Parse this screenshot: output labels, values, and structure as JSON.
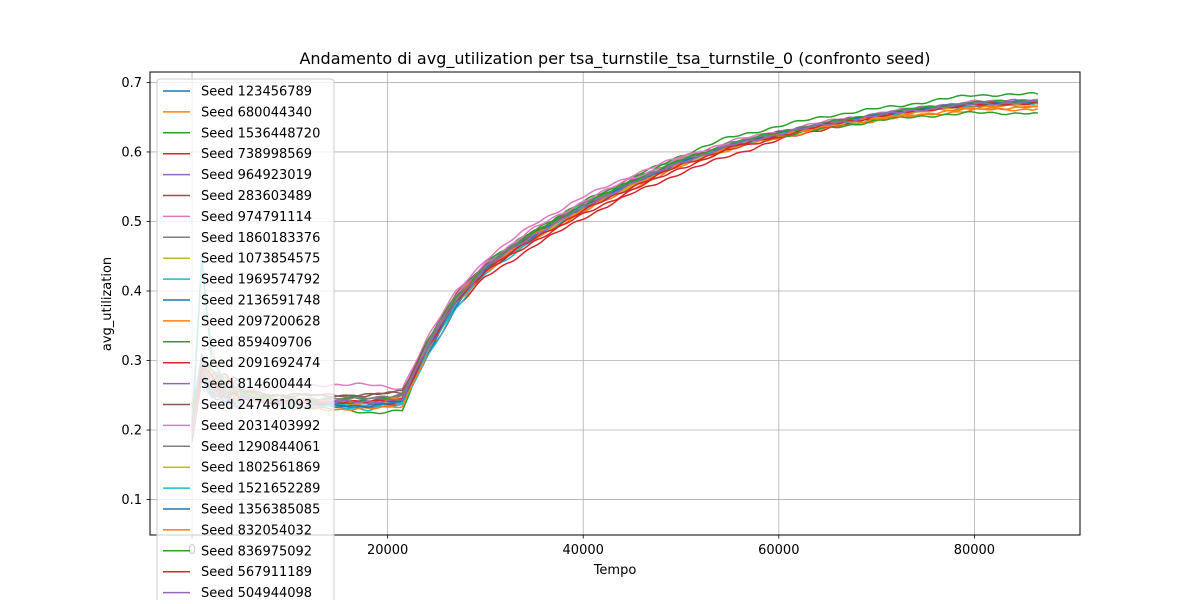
{
  "chart_data": {
    "type": "line",
    "title": "Andamento di avg_utilization per tsa_turnstile_tsa_turnstile_0 (confronto seed)",
    "xlabel": "Tempo",
    "ylabel": "avg_utilization",
    "xlim": [
      -4300,
      90800
    ],
    "ylim": [
      0.049,
      0.715
    ],
    "xticks": [
      0,
      20000,
      40000,
      60000,
      80000
    ],
    "xtick_labels": [
      "0",
      "20000",
      "40000",
      "60000",
      "80000"
    ],
    "yticks": [
      0.1,
      0.2,
      0.3,
      0.4,
      0.5,
      0.6,
      0.7
    ],
    "ytick_labels": [
      "0.1",
      "0.2",
      "0.3",
      "0.4",
      "0.5",
      "0.6",
      "0.7"
    ],
    "grid": true,
    "legend_position": "upper-left",
    "x": [
      0,
      1000,
      2000,
      4000,
      6000,
      8000,
      10000,
      14000,
      18000,
      21500,
      24000,
      27000,
      30000,
      35000,
      40000,
      45000,
      50000,
      55000,
      60000,
      65000,
      70000,
      75000,
      80000,
      86500
    ],
    "series": [
      {
        "name": "Seed 123456789",
        "color": "#1f77b4",
        "values": [
          0.19,
          0.28,
          0.25,
          0.25,
          0.25,
          0.24,
          0.24,
          0.24,
          0.24,
          0.245,
          0.32,
          0.39,
          0.435,
          0.48,
          0.52,
          0.555,
          0.585,
          0.61,
          0.625,
          0.64,
          0.65,
          0.662,
          0.67,
          0.67
        ]
      },
      {
        "name": "Seed 680044340",
        "color": "#ff7f0e",
        "values": [
          0.2,
          0.44,
          0.3,
          0.26,
          0.25,
          0.245,
          0.24,
          0.235,
          0.235,
          0.24,
          0.315,
          0.385,
          0.43,
          0.475,
          0.517,
          0.552,
          0.582,
          0.606,
          0.622,
          0.636,
          0.647,
          0.655,
          0.662,
          0.665
        ]
      },
      {
        "name": "Seed 1536448720",
        "color": "#2ca02c",
        "values": [
          0.22,
          0.3,
          0.27,
          0.255,
          0.25,
          0.24,
          0.235,
          0.23,
          0.225,
          0.228,
          0.31,
          0.385,
          0.435,
          0.485,
          0.527,
          0.563,
          0.595,
          0.621,
          0.637,
          0.652,
          0.662,
          0.672,
          0.682,
          0.683
        ]
      },
      {
        "name": "Seed 738998569",
        "color": "#d62728",
        "values": [
          0.21,
          0.3,
          0.27,
          0.25,
          0.245,
          0.24,
          0.235,
          0.235,
          0.235,
          0.236,
          0.305,
          0.375,
          0.42,
          0.465,
          0.505,
          0.54,
          0.57,
          0.595,
          0.617,
          0.635,
          0.65,
          0.662,
          0.668,
          0.672
        ]
      },
      {
        "name": "Seed 964923019",
        "color": "#9467bd",
        "values": [
          0.22,
          0.29,
          0.26,
          0.25,
          0.25,
          0.245,
          0.24,
          0.24,
          0.24,
          0.25,
          0.32,
          0.39,
          0.437,
          0.482,
          0.52,
          0.556,
          0.586,
          0.611,
          0.628,
          0.642,
          0.654,
          0.664,
          0.671,
          0.675
        ]
      },
      {
        "name": "Seed 283603489",
        "color": "#8c564b",
        "values": [
          0.21,
          0.29,
          0.27,
          0.26,
          0.255,
          0.25,
          0.25,
          0.25,
          0.25,
          0.255,
          0.325,
          0.395,
          0.44,
          0.485,
          0.523,
          0.557,
          0.588,
          0.612,
          0.628,
          0.642,
          0.653,
          0.663,
          0.669,
          0.671
        ]
      },
      {
        "name": "Seed 974791114",
        "color": "#e377c2",
        "values": [
          0.21,
          0.3,
          0.27,
          0.26,
          0.26,
          0.26,
          0.265,
          0.265,
          0.265,
          0.26,
          0.33,
          0.4,
          0.445,
          0.497,
          0.535,
          0.567,
          0.593,
          0.615,
          0.63,
          0.644,
          0.655,
          0.665,
          0.672,
          0.676
        ]
      },
      {
        "name": "Seed 1860183376",
        "color": "#7f7f7f",
        "values": [
          0.2,
          0.29,
          0.27,
          0.26,
          0.255,
          0.25,
          0.245,
          0.245,
          0.245,
          0.25,
          0.325,
          0.395,
          0.44,
          0.485,
          0.524,
          0.558,
          0.588,
          0.612,
          0.628,
          0.642,
          0.654,
          0.663,
          0.67,
          0.673
        ]
      },
      {
        "name": "Seed 1073854575",
        "color": "#bcbd22",
        "values": [
          0.2,
          0.29,
          0.265,
          0.255,
          0.25,
          0.245,
          0.24,
          0.24,
          0.24,
          0.245,
          0.318,
          0.388,
          0.434,
          0.48,
          0.519,
          0.553,
          0.584,
          0.608,
          0.625,
          0.639,
          0.651,
          0.661,
          0.667,
          0.669
        ]
      },
      {
        "name": "Seed 1969574792",
        "color": "#17becf",
        "values": [
          0.19,
          0.47,
          0.3,
          0.26,
          0.25,
          0.245,
          0.24,
          0.235,
          0.23,
          0.235,
          0.305,
          0.375,
          0.425,
          0.475,
          0.517,
          0.552,
          0.583,
          0.607,
          0.624,
          0.638,
          0.65,
          0.66,
          0.667,
          0.67
        ]
      },
      {
        "name": "Seed 2136591748",
        "color": "#1f77b4",
        "values": [
          0.2,
          0.29,
          0.26,
          0.25,
          0.245,
          0.24,
          0.24,
          0.235,
          0.235,
          0.24,
          0.31,
          0.378,
          0.428,
          0.478,
          0.52,
          0.555,
          0.585,
          0.609,
          0.626,
          0.64,
          0.652,
          0.662,
          0.669,
          0.672
        ]
      },
      {
        "name": "Seed 2097200628",
        "color": "#ff7f0e",
        "values": [
          0.21,
          0.3,
          0.27,
          0.25,
          0.245,
          0.24,
          0.235,
          0.23,
          0.23,
          0.235,
          0.31,
          0.38,
          0.428,
          0.475,
          0.514,
          0.548,
          0.579,
          0.604,
          0.621,
          0.635,
          0.646,
          0.654,
          0.66,
          0.662
        ]
      },
      {
        "name": "Seed 859409706",
        "color": "#2ca02c",
        "values": [
          0.22,
          0.3,
          0.27,
          0.26,
          0.255,
          0.25,
          0.245,
          0.245,
          0.245,
          0.25,
          0.325,
          0.395,
          0.44,
          0.488,
          0.528,
          0.562,
          0.59,
          0.61,
          0.622,
          0.634,
          0.645,
          0.652,
          0.656,
          0.656
        ]
      },
      {
        "name": "Seed 2091692474",
        "color": "#d62728",
        "values": [
          0.2,
          0.29,
          0.26,
          0.25,
          0.245,
          0.24,
          0.24,
          0.24,
          0.24,
          0.245,
          0.315,
          0.385,
          0.428,
          0.472,
          0.51,
          0.545,
          0.577,
          0.603,
          0.622,
          0.638,
          0.651,
          0.661,
          0.668,
          0.671
        ]
      },
      {
        "name": "Seed 814600444",
        "color": "#9467bd",
        "values": [
          0.2,
          0.29,
          0.26,
          0.25,
          0.245,
          0.24,
          0.24,
          0.24,
          0.24,
          0.245,
          0.318,
          0.388,
          0.435,
          0.482,
          0.521,
          0.555,
          0.586,
          0.61,
          0.627,
          0.641,
          0.653,
          0.663,
          0.67,
          0.673
        ]
      },
      {
        "name": "Seed 247461093",
        "color": "#8c564b",
        "values": [
          0.2,
          0.29,
          0.27,
          0.26,
          0.255,
          0.25,
          0.25,
          0.25,
          0.25,
          0.255,
          0.325,
          0.393,
          0.438,
          0.483,
          0.522,
          0.556,
          0.587,
          0.611,
          0.627,
          0.641,
          0.652,
          0.662,
          0.668,
          0.671
        ]
      },
      {
        "name": "Seed 2031403992",
        "color": "#e377c2",
        "values": [
          0.21,
          0.29,
          0.265,
          0.255,
          0.25,
          0.245,
          0.24,
          0.24,
          0.24,
          0.245,
          0.322,
          0.392,
          0.44,
          0.49,
          0.529,
          0.562,
          0.59,
          0.613,
          0.628,
          0.642,
          0.653,
          0.663,
          0.67,
          0.673
        ]
      },
      {
        "name": "Seed 1290844061",
        "color": "#7f7f7f",
        "values": [
          0.2,
          0.29,
          0.265,
          0.255,
          0.25,
          0.245,
          0.245,
          0.245,
          0.245,
          0.25,
          0.322,
          0.392,
          0.438,
          0.484,
          0.523,
          0.557,
          0.587,
          0.611,
          0.627,
          0.641,
          0.653,
          0.663,
          0.67,
          0.672
        ]
      },
      {
        "name": "Seed 1802561869",
        "color": "#bcbd22",
        "values": [
          0.2,
          0.29,
          0.26,
          0.25,
          0.245,
          0.24,
          0.24,
          0.24,
          0.24,
          0.245,
          0.317,
          0.387,
          0.433,
          0.479,
          0.518,
          0.552,
          0.583,
          0.607,
          0.624,
          0.638,
          0.65,
          0.66,
          0.667,
          0.669
        ]
      },
      {
        "name": "Seed 1521652289",
        "color": "#17becf",
        "values": [
          0.2,
          0.29,
          0.26,
          0.25,
          0.245,
          0.24,
          0.235,
          0.235,
          0.235,
          0.24,
          0.312,
          0.382,
          0.43,
          0.478,
          0.519,
          0.554,
          0.585,
          0.609,
          0.626,
          0.64,
          0.652,
          0.662,
          0.669,
          0.671
        ]
      },
      {
        "name": "Seed 1356385085",
        "color": "#1f77b4",
        "values": [
          0.2,
          0.29,
          0.26,
          0.25,
          0.245,
          0.24,
          0.24,
          0.235,
          0.235,
          0.24,
          0.315,
          0.385,
          0.432,
          0.48,
          0.52,
          0.555,
          0.585,
          0.609,
          0.626,
          0.64,
          0.652,
          0.662,
          0.669,
          0.672
        ]
      },
      {
        "name": "Seed 832054032",
        "color": "#ff7f0e",
        "values": [
          0.21,
          0.29,
          0.265,
          0.255,
          0.25,
          0.245,
          0.24,
          0.24,
          0.24,
          0.245,
          0.318,
          0.388,
          0.434,
          0.48,
          0.518,
          0.552,
          0.583,
          0.607,
          0.624,
          0.638,
          0.649,
          0.658,
          0.664,
          0.666
        ]
      },
      {
        "name": "Seed 836975092",
        "color": "#2ca02c",
        "values": [
          0.21,
          0.29,
          0.265,
          0.255,
          0.25,
          0.245,
          0.24,
          0.24,
          0.24,
          0.245,
          0.318,
          0.388,
          0.436,
          0.484,
          0.524,
          0.558,
          0.588,
          0.612,
          0.628,
          0.642,
          0.654,
          0.664,
          0.671,
          0.674
        ]
      },
      {
        "name": "Seed 567911189",
        "color": "#d62728",
        "values": [
          0.2,
          0.29,
          0.26,
          0.25,
          0.245,
          0.24,
          0.24,
          0.24,
          0.24,
          0.245,
          0.315,
          0.385,
          0.43,
          0.476,
          0.515,
          0.55,
          0.581,
          0.606,
          0.624,
          0.639,
          0.651,
          0.661,
          0.668,
          0.671
        ]
      },
      {
        "name": "Seed 504944098",
        "color": "#9467bd",
        "values": [
          0.2,
          0.29,
          0.26,
          0.25,
          0.245,
          0.24,
          0.24,
          0.24,
          0.24,
          0.245,
          0.317,
          0.387,
          0.434,
          0.481,
          0.52,
          0.555,
          0.585,
          0.609,
          0.626,
          0.64,
          0.652,
          0.662,
          0.669,
          0.672
        ]
      }
    ]
  }
}
